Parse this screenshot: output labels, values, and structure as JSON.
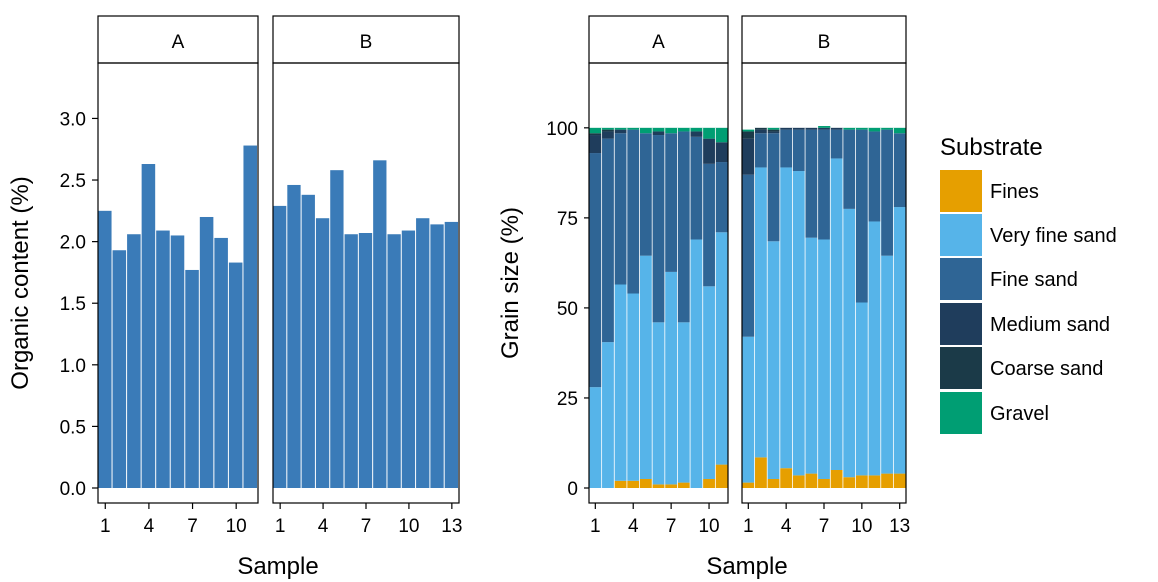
{
  "chart_data": [
    {
      "type": "bar",
      "facets": [
        {
          "label": "A",
          "x": [
            1,
            2,
            3,
            4,
            5,
            6,
            7,
            8,
            9,
            10,
            11
          ],
          "values": [
            2.25,
            1.93,
            2.06,
            2.63,
            2.09,
            2.05,
            1.77,
            2.2,
            2.03,
            1.83,
            2.78
          ]
        },
        {
          "label": "B",
          "x": [
            1,
            2,
            3,
            4,
            5,
            6,
            7,
            8,
            9,
            10,
            11,
            12,
            13
          ],
          "values": [
            2.29,
            2.46,
            2.38,
            2.19,
            2.58,
            2.06,
            2.07,
            2.66,
            2.06,
            2.09,
            2.19,
            2.14,
            2.16
          ]
        }
      ],
      "xlabel": "Sample",
      "ylabel": "Organic content (%)",
      "ylim": [
        0,
        3.45
      ],
      "yticks": [
        "0.0",
        "0.5",
        "1.0",
        "1.5",
        "2.0",
        "2.5",
        "3.0"
      ],
      "yticks_values": [
        0,
        0.5,
        1.0,
        1.5,
        2.0,
        2.5,
        3.0
      ],
      "xticks_A": [
        1,
        4,
        7,
        10
      ],
      "xticks_B": [
        1,
        4,
        7,
        10,
        13
      ],
      "bar_color": "#3a7bb8",
      "grid": false
    },
    {
      "type": "bar",
      "stacked": true,
      "facets": [
        {
          "label": "A",
          "x": [
            1,
            2,
            3,
            4,
            5,
            6,
            7,
            8,
            9,
            10,
            11
          ],
          "series": [
            {
              "name": "Fines",
              "values": [
                0,
                0,
                2,
                2,
                2.5,
                1,
                1,
                1.5,
                0,
                2.5,
                6.5
              ]
            },
            {
              "name": "Very fine sand",
              "values": [
                28,
                40.5,
                54.5,
                52,
                62,
                45,
                59,
                44.5,
                69,
                53.5,
                64.5
              ]
            },
            {
              "name": "Fine sand",
              "values": [
                65,
                56.5,
                42,
                45.5,
                34,
                52,
                38.5,
                53,
                28.5,
                34,
                19.5
              ]
            },
            {
              "name": "Medium sand",
              "values": [
                5,
                2,
                1,
                0,
                0,
                1,
                0,
                0,
                1.5,
                7,
                5.5
              ]
            },
            {
              "name": "Coarse sand",
              "values": [
                0.5,
                0.5,
                0,
                0,
                0,
                0,
                0,
                0,
                0,
                0,
                0
              ]
            },
            {
              "name": "Gravel",
              "values": [
                1.5,
                0.5,
                0.5,
                0.5,
                1.5,
                1,
                1.5,
                1,
                1,
                3,
                4
              ]
            }
          ]
        },
        {
          "label": "B",
          "x": [
            1,
            2,
            3,
            4,
            5,
            6,
            7,
            8,
            9,
            10,
            11,
            12,
            13
          ],
          "series": [
            {
              "name": "Fines",
              "values": [
                1.5,
                8.5,
                2.5,
                5.5,
                3.5,
                4,
                2.5,
                5,
                3,
                3.5,
                3.5,
                4,
                4
              ]
            },
            {
              "name": "Very fine sand",
              "values": [
                40.5,
                80.5,
                66,
                83.5,
                84.5,
                65.5,
                66.5,
                86.5,
                74.5,
                48,
                70.5,
                60.5,
                74
              ]
            },
            {
              "name": "Fine sand",
              "values": [
                45,
                9.5,
                30,
                10.5,
                11.5,
                30,
                30.5,
                8,
                22,
                48,
                25,
                35,
                20.5
              ]
            },
            {
              "name": "Medium sand",
              "values": [
                10,
                1,
                0.5,
                0.5,
                0.5,
                0.5,
                0.5,
                0.5,
                0,
                0,
                0,
                0,
                0
              ]
            },
            {
              "name": "Coarse sand",
              "values": [
                2,
                0.5,
                0.5,
                0,
                0,
                0,
                0,
                0,
                0,
                0,
                0,
                0,
                0
              ]
            },
            {
              "name": "Gravel",
              "values": [
                0.5,
                0,
                0.5,
                0,
                0,
                0,
                0.5,
                0,
                0.5,
                0.5,
                1,
                0.5,
                1.5
              ]
            }
          ]
        }
      ],
      "xlabel": "Sample",
      "ylabel": "Grain size (%)",
      "ylim": [
        0,
        118
      ],
      "yticks": [
        "0",
        "25",
        "50",
        "75",
        "100"
      ],
      "yticks_values": [
        0,
        25,
        50,
        75,
        100
      ],
      "xticks_A": [
        1,
        4,
        7,
        10
      ],
      "xticks_B": [
        1,
        4,
        7,
        10,
        13
      ],
      "grid": false
    }
  ],
  "legend": {
    "title": "Substrate",
    "items": [
      {
        "label": "Fines",
        "color": "#e69f00"
      },
      {
        "label": "Very fine sand",
        "color": "#56b4e9"
      },
      {
        "label": "Fine sand",
        "color": "#2f6595"
      },
      {
        "label": "Medium sand",
        "color": "#1f3d5c"
      },
      {
        "label": "Coarse sand",
        "color": "#1b3a48"
      },
      {
        "label": "Gravel",
        "color": "#009e73"
      }
    ]
  }
}
